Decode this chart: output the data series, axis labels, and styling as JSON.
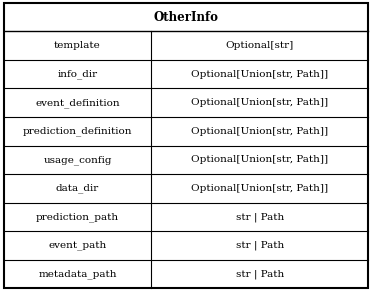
{
  "title": "OtherInfo",
  "rows": [
    [
      "template",
      "Optional[str]"
    ],
    [
      "info_dir",
      "Optional[Union[str, Path]]"
    ],
    [
      "event_definition",
      "Optional[Union[str, Path]]"
    ],
    [
      "prediction_definition",
      "Optional[Union[str, Path]]"
    ],
    [
      "usage_config",
      "Optional[Union[str, Path]]"
    ],
    [
      "data_dir",
      "Optional[Union[str, Path]]"
    ],
    [
      "prediction_path",
      "str | Path"
    ],
    [
      "event_path",
      "str | Path"
    ],
    [
      "metadata_path",
      "str | Path"
    ]
  ],
  "bg_color": "#ffffff",
  "border_color": "#000000",
  "title_fontsize": 8.5,
  "cell_fontsize": 7.5,
  "font_family": "DejaVu Serif",
  "col_split": 0.405,
  "padding": 0.003
}
